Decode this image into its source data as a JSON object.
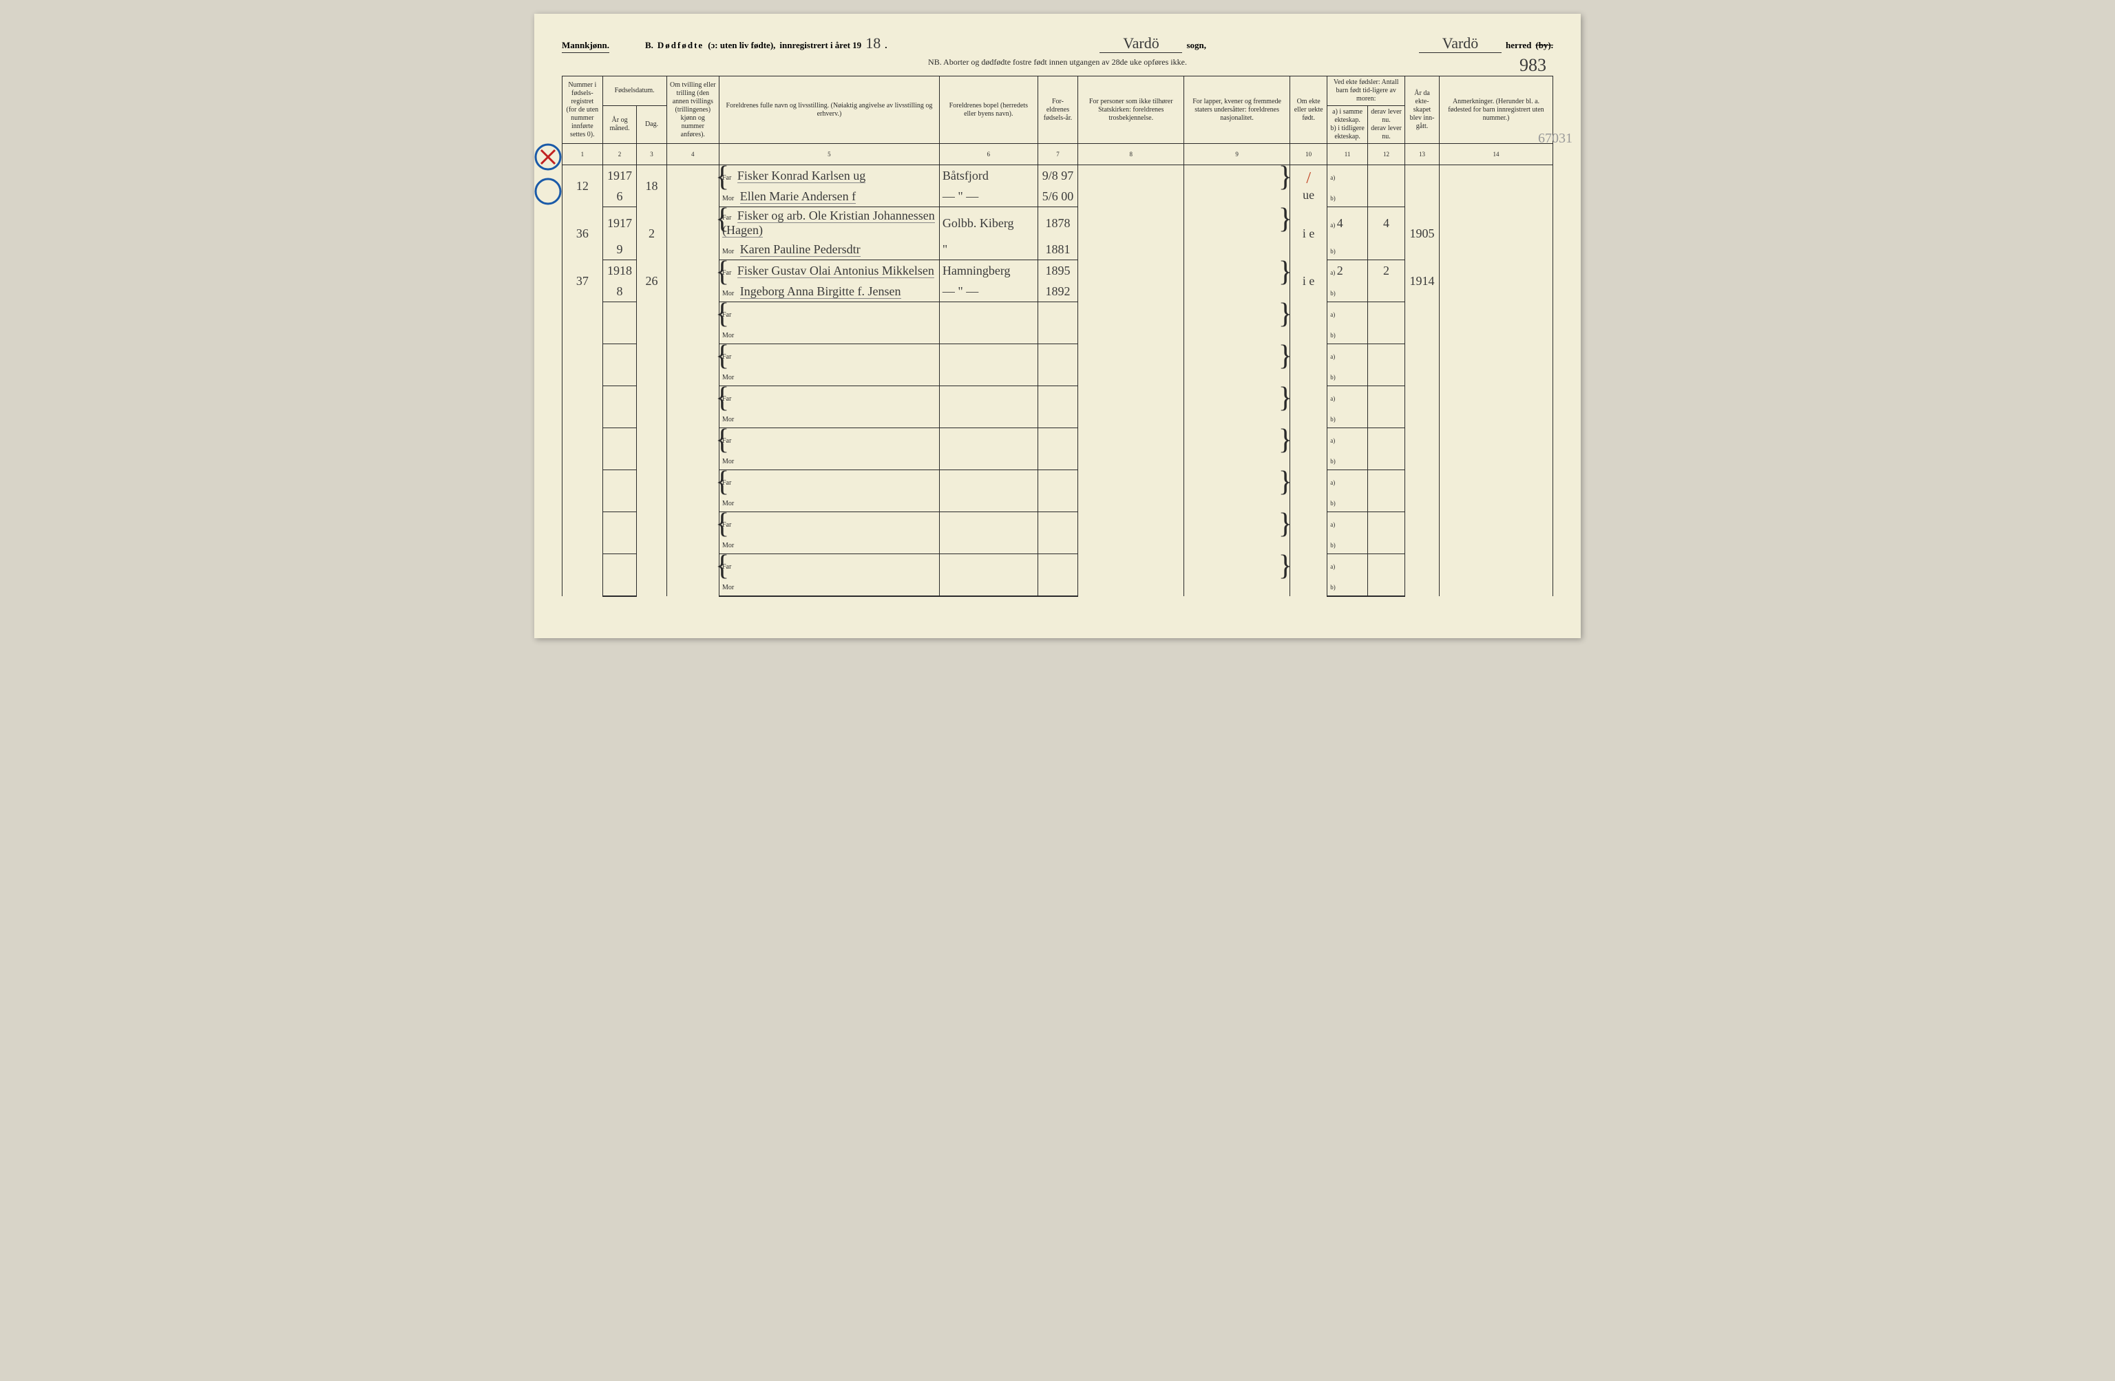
{
  "header": {
    "gender": "Mannkjønn.",
    "section": "B.",
    "title_main": "Dødfødte",
    "title_paren": "(ɔ: uten liv fødte),",
    "title_reg": "innregistrert i året 19",
    "year_suffix": "18",
    "sogn_fill": "Vardö",
    "sogn_label": "sogn,",
    "herred_fill": "Vardö",
    "herred_label": "herred",
    "by_struck": "(by).",
    "page_number": "983",
    "margin_note": "67031",
    "nb": "NB. Aborter og dødfødte fostre født innen utgangen av 28de uke opføres ikke."
  },
  "columns": {
    "c1": "Nummer i fødsels-registret (for de uten nummer innførte settes 0).",
    "c2_top": "Fødselsdatum.",
    "c2": "År og måned.",
    "c3": "Dag.",
    "c4": "Om tvilling eller trilling (den annen tvillings (trillingenes) kjønn og nummer anføres).",
    "c5": "Foreldrenes fulle navn og livsstilling. (Nøiaktig angivelse av livsstilling og erhverv.)",
    "c6": "Foreldrenes bopel (herredets eller byens navn).",
    "c7": "For-eldrenes fødsels-år.",
    "c8": "For personer som ikke tilhører Statskirken: foreldrenes trosbekjennelse.",
    "c9": "For lapper, kvener og fremmede staters undersåtter: foreldrenes nasjonalitet.",
    "c10": "Om ekte eller uekte født.",
    "c11_top": "Ved ekte fødsler: Antall barn født tid-ligere av moren:",
    "c11a": "a) i samme ekteskap.",
    "c11b": "b) i tidligere ekteskap.",
    "c12a": "derav lever nu.",
    "c12b": "derav lever nu.",
    "c13": "År da ekte-skapet blev inn-gått.",
    "c14": "Anmerkninger. (Herunder bl. a. fødested for barn innregistrert uten nummer.)"
  },
  "colnums": [
    "1",
    "2",
    "3",
    "4",
    "5",
    "6",
    "7",
    "8",
    "9",
    "10",
    "11",
    "12",
    "13",
    "14"
  ],
  "rows": [
    {
      "num": "12",
      "year": "1917",
      "month": "6",
      "day": "18",
      "far": "Fisker Konrad Karlsen   ug",
      "mor": "Ellen Marie Andersen   f",
      "bopel_far": "Båtsfjord",
      "bopel_mor": "— \" —",
      "faar_far": "9/8 97",
      "faar_mor": "5/6 00",
      "ekte": "ue",
      "a": "",
      "b": "",
      "a_lever": "",
      "b_lever": "",
      "aar_ekt": "",
      "red_mark": true
    },
    {
      "num": "36",
      "year": "1917",
      "month": "9",
      "day": "2",
      "far": "Fisker og arb. Ole Kristian Johannessen  (Hagen)",
      "mor": "Karen Pauline Pedersdtr",
      "bopel_far": "Golbb. Kiberg",
      "bopel_mor": "\"",
      "faar_far": "1878",
      "faar_mor": "1881",
      "ekte": "i e",
      "a": "4",
      "b": "",
      "a_lever": "4",
      "b_lever": "",
      "aar_ekt": "1905"
    },
    {
      "num": "37",
      "year": "1918",
      "month": "8",
      "day": "26",
      "far": "Fisker Gustav Olai Antonius Mikkelsen",
      "mor": "Ingeborg Anna Birgitte f. Jensen",
      "bopel_far": "Hamningberg",
      "bopel_mor": "— \" —",
      "faar_far": "1895",
      "faar_mor": "1892",
      "ekte": "i e",
      "a": "2",
      "b": "",
      "a_lever": "2",
      "b_lever": "",
      "aar_ekt": "1914"
    }
  ],
  "empty_rows": 7,
  "labels": {
    "far": "Far",
    "mor": "Mor",
    "a": "a)",
    "b": "b)"
  }
}
